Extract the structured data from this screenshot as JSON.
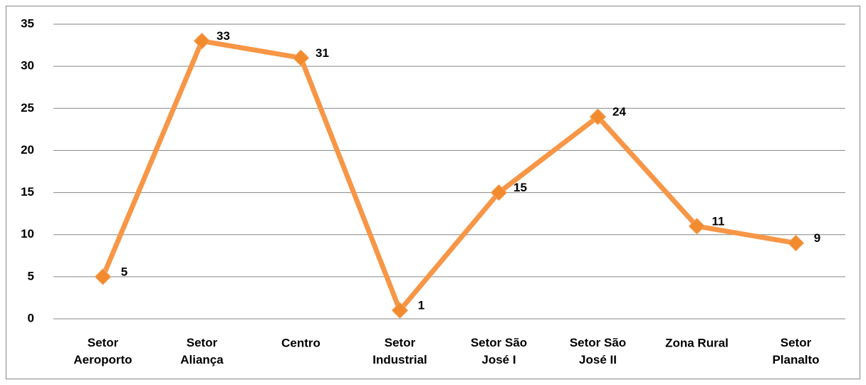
{
  "chart_data": {
    "type": "line",
    "categories": [
      "Setor\nAeroporto",
      "Setor\nAliança",
      "Centro",
      "Setor\nIndustrial",
      "Setor São\nJosé I",
      "Setor São\nJosé II",
      "Zona Rural",
      "Setor\nPlanalto"
    ],
    "values": [
      5,
      33,
      31,
      1,
      15,
      24,
      11,
      9
    ],
    "color": "#f79646",
    "ylim": [
      0,
      35
    ],
    "yticks": [
      0,
      5,
      10,
      15,
      20,
      25,
      30,
      35
    ],
    "grid": true
  }
}
